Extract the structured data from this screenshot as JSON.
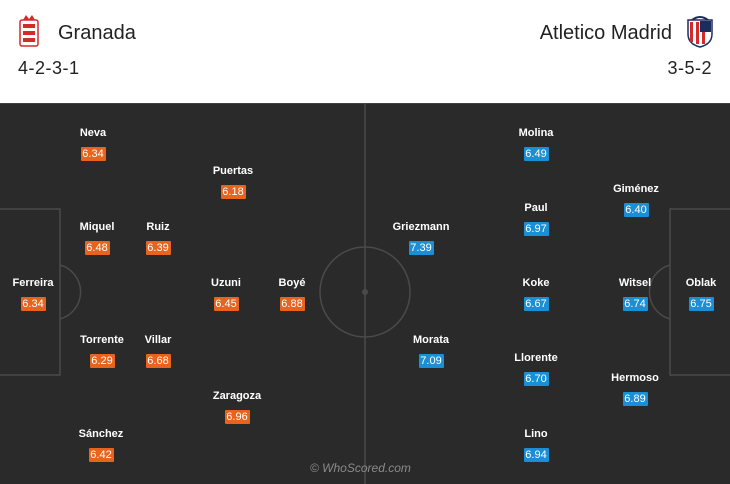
{
  "home": {
    "name": "Granada",
    "formation": "4-2-3-1",
    "crest_icon": "granada-crest-icon",
    "color": "#e8641e",
    "players": [
      {
        "name": "Ferreira",
        "rating": "6.34"
      },
      {
        "name": "Neva",
        "rating": "6.34"
      },
      {
        "name": "Miquel",
        "rating": "6.48"
      },
      {
        "name": "Torrente",
        "rating": "6.29"
      },
      {
        "name": "Sánchez",
        "rating": "6.42"
      },
      {
        "name": "Ruiz",
        "rating": "6.39"
      },
      {
        "name": "Villar",
        "rating": "6.68"
      },
      {
        "name": "Puertas",
        "rating": "6.18"
      },
      {
        "name": "Uzuni",
        "rating": "6.45"
      },
      {
        "name": "Zaragoza",
        "rating": "6.96"
      },
      {
        "name": "Boyé",
        "rating": "6.88"
      }
    ]
  },
  "away": {
    "name": "Atletico Madrid",
    "formation": "3-5-2",
    "crest_icon": "atletico-madrid-crest-icon",
    "color": "#1a8fd6",
    "players": [
      {
        "name": "Oblak",
        "rating": "6.75"
      },
      {
        "name": "Giménez",
        "rating": "6.40"
      },
      {
        "name": "Witsel",
        "rating": "6.74"
      },
      {
        "name": "Hermoso",
        "rating": "6.89"
      },
      {
        "name": "Molina",
        "rating": "6.49"
      },
      {
        "name": "Paul",
        "rating": "6.97"
      },
      {
        "name": "Koke",
        "rating": "6.67"
      },
      {
        "name": "Llorente",
        "rating": "6.70"
      },
      {
        "name": "Lino",
        "rating": "6.94"
      },
      {
        "name": "Griezmann",
        "rating": "7.39"
      },
      {
        "name": "Morata",
        "rating": "7.09"
      }
    ]
  },
  "watermark": "© WhoScored.com"
}
